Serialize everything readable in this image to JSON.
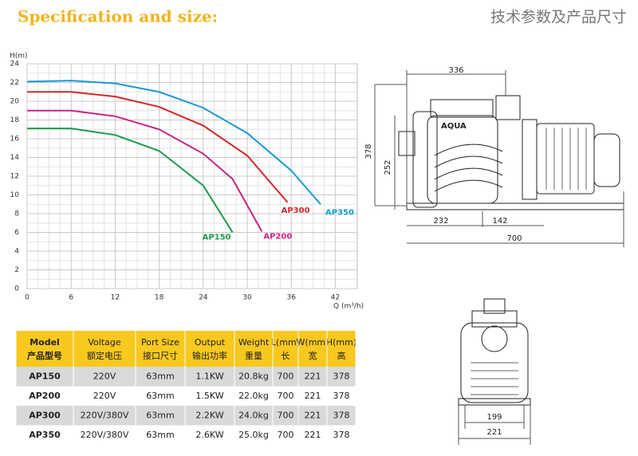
{
  "header": {
    "title": "Specification and size:",
    "title_cn": "技术参数及产品尺寸"
  },
  "chart_data": {
    "type": "line",
    "y_label": "H(m)",
    "x_label": "Q (m³/h)",
    "xlim": [
      0,
      45
    ],
    "ylim": [
      0,
      24
    ],
    "xticks": [
      0,
      6,
      12,
      18,
      24,
      30,
      36,
      42
    ],
    "yticks": [
      0,
      2,
      4,
      6,
      8,
      10,
      12,
      14,
      16,
      18,
      20,
      22,
      24
    ],
    "grid": true,
    "series": [
      {
        "name": "AP150",
        "color": "#1c9a4b",
        "x": [
          0,
          6,
          12,
          18,
          24,
          28
        ],
        "values": [
          17.1,
          17.1,
          16.4,
          14.7,
          11.0,
          6.0
        ]
      },
      {
        "name": "AP200",
        "color": "#c9237f",
        "x": [
          0,
          6,
          12,
          18,
          24,
          28,
          32
        ],
        "values": [
          19.0,
          19.0,
          18.4,
          17.0,
          14.4,
          11.7,
          6.1
        ]
      },
      {
        "name": "AP300",
        "color": "#d7252a",
        "x": [
          0,
          6,
          12,
          18,
          24,
          30,
          35.5
        ],
        "values": [
          21.0,
          21.0,
          20.5,
          19.4,
          17.4,
          14.2,
          9.2
        ]
      },
      {
        "name": "AP350",
        "color": "#1a9ad6",
        "x": [
          0,
          6,
          12,
          18,
          24,
          30,
          36,
          40
        ],
        "values": [
          22.1,
          22.2,
          21.9,
          21.0,
          19.3,
          16.6,
          12.6,
          9.0
        ]
      }
    ]
  },
  "table": {
    "header": [
      {
        "en": "Model",
        "cn": "产品型号"
      },
      {
        "en": "Voltage",
        "cn": "额定电压"
      },
      {
        "en": "Port Size",
        "cn": "接口尺寸"
      },
      {
        "en": "Output",
        "cn": "输出功率"
      },
      {
        "en": "Weight",
        "cn": "重量"
      },
      {
        "en": "L(mm)",
        "cn": "长"
      },
      {
        "en": "W(mm)",
        "cn": "宽"
      },
      {
        "en": "H(mm)",
        "cn": "高"
      }
    ],
    "rows": [
      [
        "AP150",
        "220V",
        "63mm",
        "1.1KW",
        "20.8kg",
        700,
        221,
        378
      ],
      [
        "AP200",
        "220V",
        "63mm",
        "1.5KW",
        "22.0kg",
        700,
        221,
        378
      ],
      [
        "AP300",
        "220V/380V",
        "63mm",
        "2.2KW",
        "24.0kg",
        700,
        221,
        378
      ],
      [
        "AP350",
        "220V/380V",
        "63mm",
        "2.6KW",
        "25.0kg",
        700,
        221,
        378
      ]
    ]
  },
  "side_view": {
    "brand": "AQUA",
    "top_width": 336,
    "height": 378,
    "inner_height": 252,
    "base_left": 232,
    "base_right": 142,
    "length": 700
  },
  "front_view": {
    "base_width": 199,
    "width": 221
  }
}
